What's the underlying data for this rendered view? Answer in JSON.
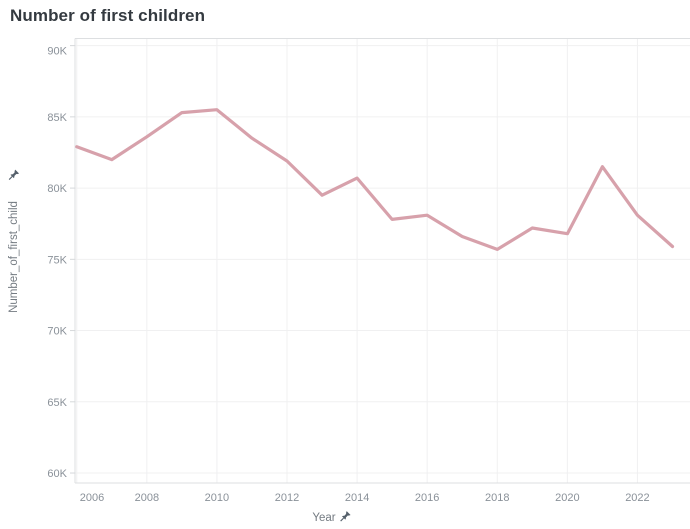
{
  "window": {
    "title": "Number of first children"
  },
  "colors": {
    "line": "#d7a1ab",
    "grid": "#f0f0f1",
    "border": "#dddfe1",
    "tick_mark": "#d5d8da",
    "tick_text": "#8a9199",
    "axis_title_text": "#747b82",
    "title_text": "#343a40",
    "pin": "#55606b",
    "background": "#ffffff"
  },
  "icons": {
    "y_axis_pin": "pushpin-icon",
    "x_axis_pin": "pushpin-icon"
  },
  "chart_data": {
    "type": "line",
    "title": "Number of first children",
    "xlabel": "Year",
    "ylabel": "Number_of_first_child",
    "x": [
      2006,
      2007,
      2008,
      2009,
      2010,
      2011,
      2012,
      2013,
      2014,
      2015,
      2016,
      2017,
      2018,
      2019,
      2020,
      2021,
      2022,
      2023
    ],
    "values": [
      82900,
      82000,
      83600,
      85300,
      85500,
      83500,
      81900,
      79500,
      80700,
      77800,
      78100,
      76600,
      75700,
      77200,
      76800,
      81500,
      78100,
      75900
    ],
    "series_name": "Number_of_first_child",
    "xlim": [
      2005.95,
      2023.5
    ],
    "ylim": [
      59300,
      90500
    ],
    "x_ticks": [
      2006,
      2008,
      2010,
      2012,
      2014,
      2016,
      2018,
      2020,
      2022
    ],
    "y_ticks": [
      {
        "value": 60000,
        "label": "60K"
      },
      {
        "value": 65000,
        "label": "65K"
      },
      {
        "value": 70000,
        "label": "70K"
      },
      {
        "value": 75000,
        "label": "75K"
      },
      {
        "value": 80000,
        "label": "80K"
      },
      {
        "value": 85000,
        "label": "85K"
      },
      {
        "value": 90000,
        "label": "90K"
      }
    ],
    "grid": true,
    "legend": false
  }
}
